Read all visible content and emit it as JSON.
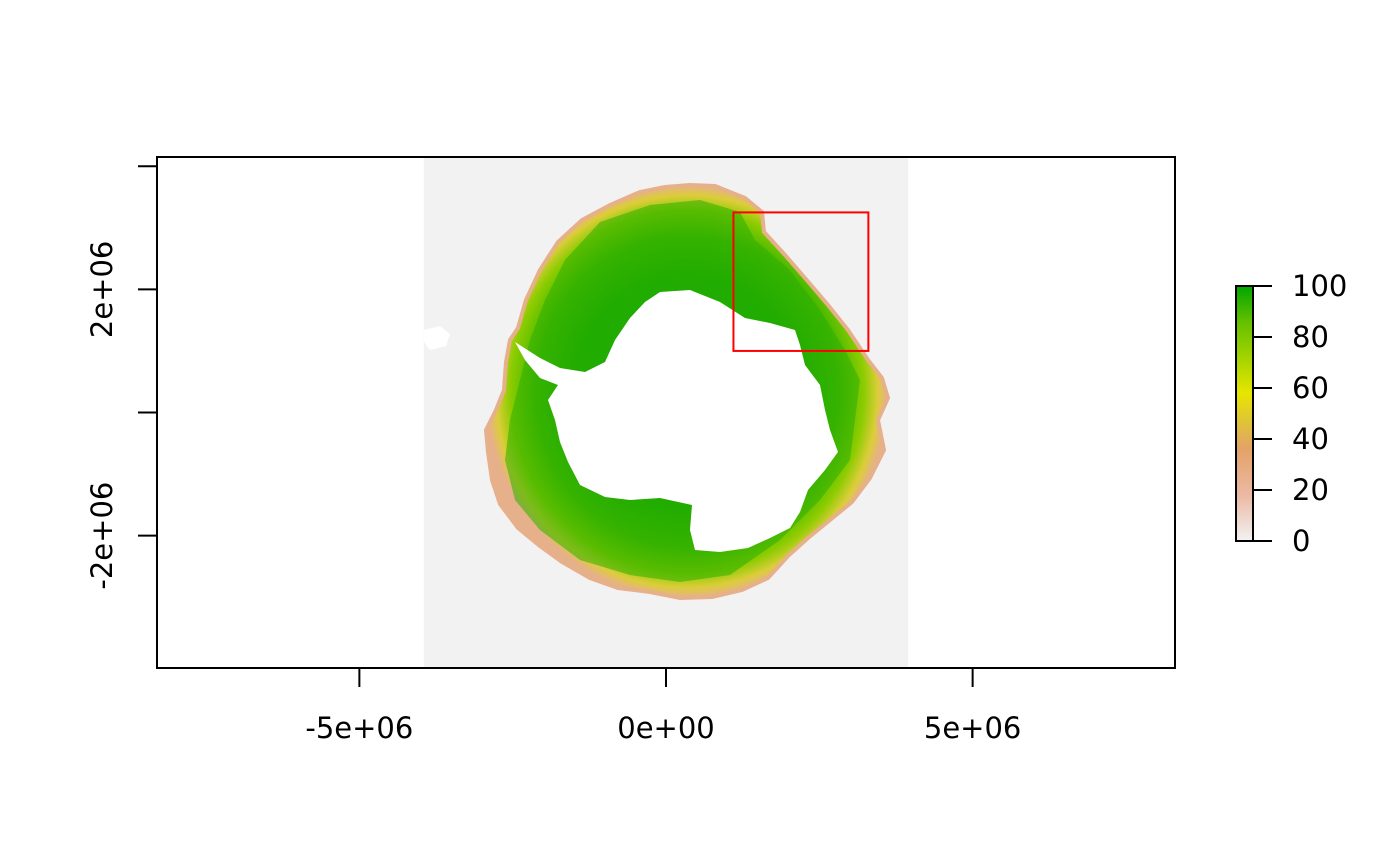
{
  "chart_data": {
    "type": "heatmap",
    "title": "",
    "xlabel": "",
    "ylabel": "",
    "xlim": [
      -8300000,
      8300000
    ],
    "ylim": [
      -4150000,
      4150000
    ],
    "x_ticks": [
      {
        "value": -5000000,
        "label": "-5e+06"
      },
      {
        "value": 0,
        "label": "0e+00"
      },
      {
        "value": 5000000,
        "label": "5e+06"
      }
    ],
    "y_ticks": [
      {
        "value": 4000000,
        "label": ""
      },
      {
        "value": 2000000,
        "label": "2e+06"
      },
      {
        "value": 0,
        "label": ""
      },
      {
        "value": -2000000,
        "label": "-2e+06"
      }
    ],
    "raster_extent": {
      "xmin": -3950000,
      "xmax": 3950000,
      "ymin": -4150000,
      "ymax": 4150000
    },
    "legend": {
      "min": 0,
      "max": 100,
      "ticks": [
        0,
        20,
        40,
        60,
        80,
        100
      ],
      "placement": "right",
      "colors": [
        "#f2f2f2",
        "#ebb9a4",
        "#e3a268",
        "#dfc13a",
        "#e6e600",
        "#a3d300",
        "#63c000",
        "#00a600"
      ]
    },
    "rectangle": {
      "xmin": 1100000,
      "xmax": 3300000,
      "ymin": 1000000,
      "ymax": 3250000,
      "color": "#ff0000"
    },
    "colors": {
      "background_raster": "#f2f2f2",
      "ice_edge": "#e6b08a",
      "low": "#dccd3a",
      "mid": "#6ec300",
      "high": "#11a800",
      "continent": "#ffffff"
    }
  }
}
